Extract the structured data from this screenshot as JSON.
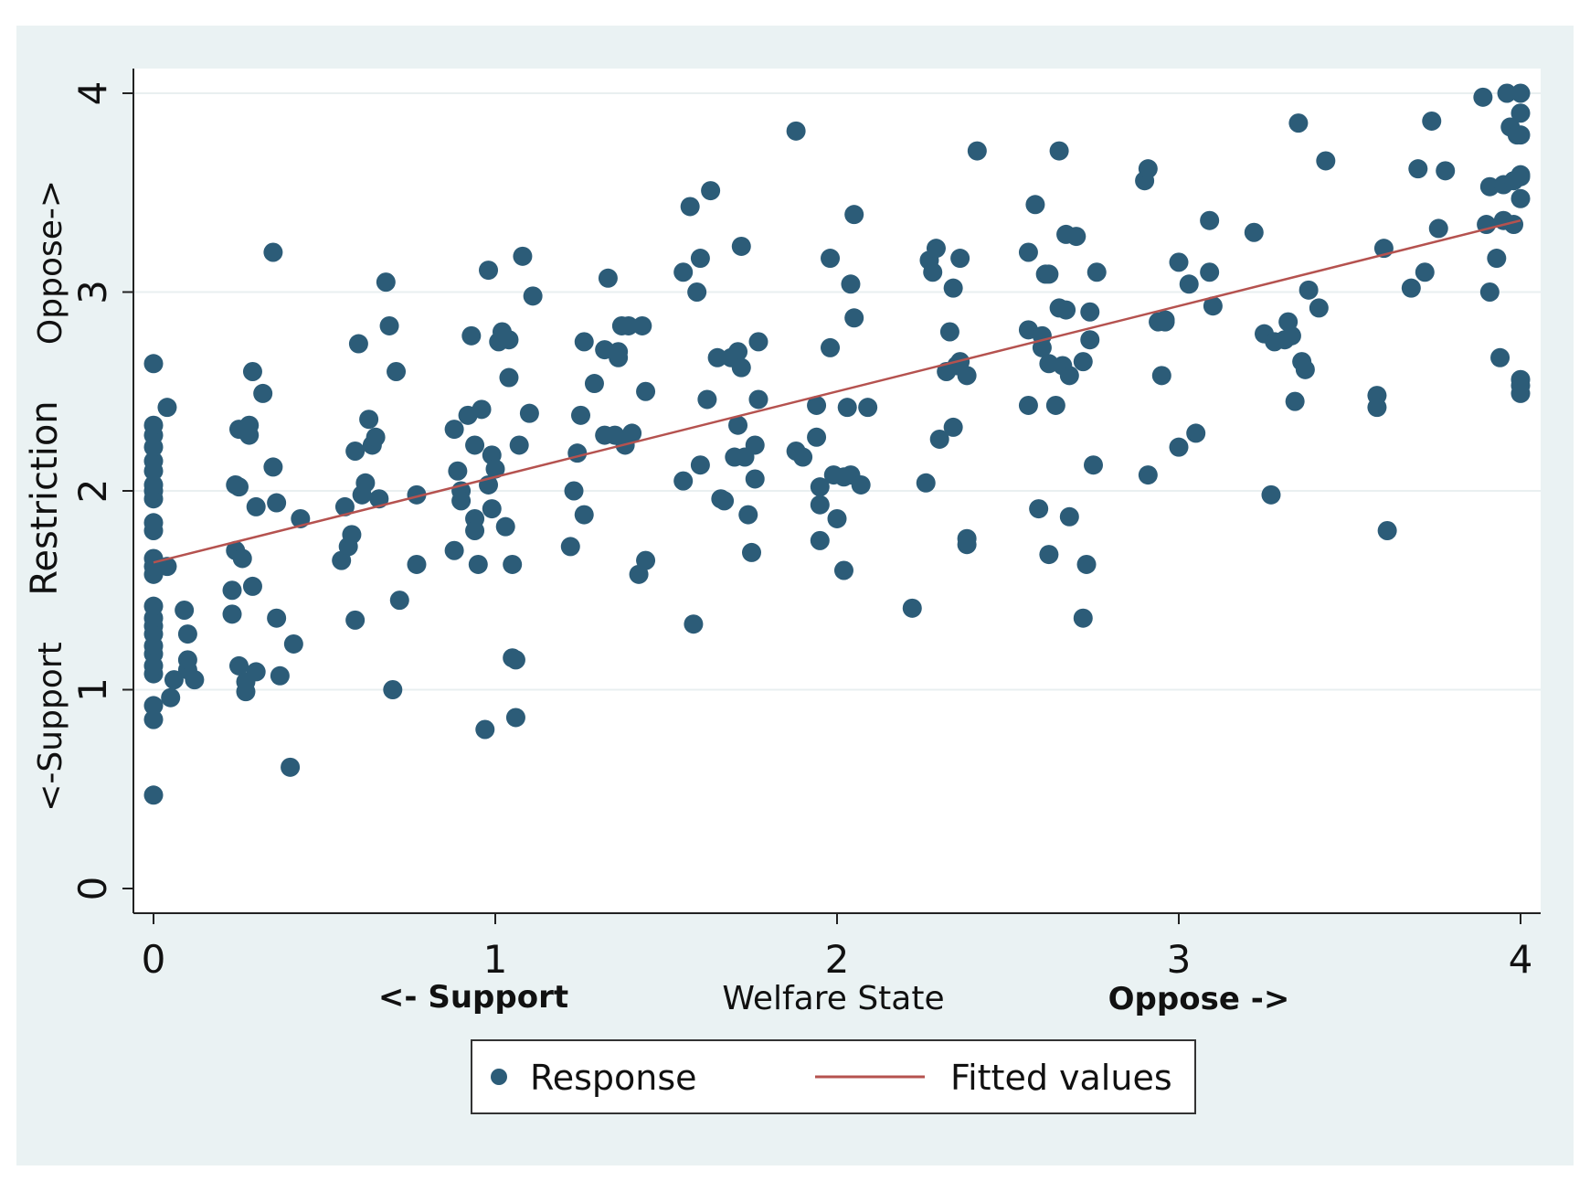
{
  "chart_data": {
    "type": "scatter",
    "title": "",
    "xlabel": "Welfare State",
    "x_sublabels": [
      "<- Support",
      "Oppose ->"
    ],
    "ylabel": "Restriction",
    "y_sublabels": [
      "<-Support",
      "Oppose->"
    ],
    "xlim": [
      0,
      4
    ],
    "ylim": [
      0,
      4
    ],
    "x_ticks": [
      "0",
      "1",
      "2",
      "3",
      "4"
    ],
    "y_ticks": [
      "0",
      "1",
      "2",
      "3",
      "4"
    ],
    "grid": "horizontal",
    "legend": {
      "position": "bottom",
      "entries": [
        "Response",
        "Fitted values"
      ]
    },
    "colors": {
      "points": "#2c5c78",
      "fit_line": "#b5524f",
      "frame_bg": "#eaf2f3",
      "plot_bg": "#ffffff"
    },
    "series": [
      {
        "name": "Response",
        "kind": "scatter",
        "points": [
          [
            0,
            0.47
          ],
          [
            0,
            0.85
          ],
          [
            0,
            0.92
          ],
          [
            0,
            1.08
          ],
          [
            0,
            1.12
          ],
          [
            0,
            1.18
          ],
          [
            0,
            1.22
          ],
          [
            0,
            1.28
          ],
          [
            0,
            1.32
          ],
          [
            0,
            1.36
          ],
          [
            0,
            1.42
          ],
          [
            0,
            1.58
          ],
          [
            0,
            1.62
          ],
          [
            0,
            1.66
          ],
          [
            0,
            1.8
          ],
          [
            0,
            1.84
          ],
          [
            0,
            1.96
          ],
          [
            0,
            2.0
          ],
          [
            0,
            2.03
          ],
          [
            0,
            2.1
          ],
          [
            0,
            2.15
          ],
          [
            0,
            2.22
          ],
          [
            0,
            2.28
          ],
          [
            0,
            2.33
          ],
          [
            0,
            2.64
          ],
          [
            0.04,
            1.62
          ],
          [
            0.04,
            2.42
          ],
          [
            0.05,
            0.96
          ],
          [
            0.06,
            1.05
          ],
          [
            0.09,
            1.4
          ],
          [
            0.1,
            1.28
          ],
          [
            0.1,
            1.1
          ],
          [
            0.1,
            1.15
          ],
          [
            0.12,
            1.05
          ],
          [
            0.23,
            1.5
          ],
          [
            0.23,
            1.38
          ],
          [
            0.24,
            1.7
          ],
          [
            0.24,
            2.03
          ],
          [
            0.25,
            2.02
          ],
          [
            0.25,
            2.31
          ],
          [
            0.25,
            1.12
          ],
          [
            0.26,
            1.66
          ],
          [
            0.27,
            1.04
          ],
          [
            0.27,
            0.99
          ],
          [
            0.28,
            2.28
          ],
          [
            0.28,
            2.33
          ],
          [
            0.29,
            1.52
          ],
          [
            0.29,
            2.6
          ],
          [
            0.3,
            1.92
          ],
          [
            0.3,
            1.09
          ],
          [
            0.32,
            2.49
          ],
          [
            0.35,
            3.2
          ],
          [
            0.35,
            2.12
          ],
          [
            0.36,
            1.94
          ],
          [
            0.36,
            1.36
          ],
          [
            0.37,
            1.07
          ],
          [
            0.4,
            0.61
          ],
          [
            0.41,
            1.23
          ],
          [
            0.43,
            1.86
          ],
          [
            0.55,
            1.65
          ],
          [
            0.56,
            1.92
          ],
          [
            0.57,
            1.72
          ],
          [
            0.58,
            1.78
          ],
          [
            0.59,
            1.35
          ],
          [
            0.59,
            2.2
          ],
          [
            0.6,
            2.74
          ],
          [
            0.61,
            1.98
          ],
          [
            0.62,
            2.04
          ],
          [
            0.63,
            2.36
          ],
          [
            0.64,
            2.23
          ],
          [
            0.65,
            2.27
          ],
          [
            0.66,
            1.96
          ],
          [
            0.68,
            3.05
          ],
          [
            0.69,
            2.83
          ],
          [
            0.7,
            1.0
          ],
          [
            0.71,
            2.6
          ],
          [
            0.72,
            1.45
          ],
          [
            0.77,
            1.98
          ],
          [
            0.77,
            1.63
          ],
          [
            0.88,
            2.31
          ],
          [
            0.88,
            1.7
          ],
          [
            0.89,
            2.1
          ],
          [
            0.9,
            2.0
          ],
          [
            0.9,
            1.95
          ],
          [
            0.92,
            2.38
          ],
          [
            0.93,
            2.78
          ],
          [
            0.94,
            2.23
          ],
          [
            0.94,
            1.86
          ],
          [
            0.94,
            1.8
          ],
          [
            0.95,
            1.63
          ],
          [
            0.96,
            2.41
          ],
          [
            0.97,
            0.8
          ],
          [
            0.98,
            3.11
          ],
          [
            0.98,
            2.03
          ],
          [
            0.99,
            1.91
          ],
          [
            0.99,
            2.18
          ],
          [
            1.0,
            2.11
          ],
          [
            1.01,
            2.75
          ],
          [
            1.02,
            2.8
          ],
          [
            1.03,
            1.82
          ],
          [
            1.04,
            2.57
          ],
          [
            1.04,
            2.76
          ],
          [
            1.05,
            1.63
          ],
          [
            1.05,
            1.16
          ],
          [
            1.06,
            1.15
          ],
          [
            1.06,
            0.86
          ],
          [
            1.07,
            2.23
          ],
          [
            1.08,
            3.18
          ],
          [
            1.1,
            2.39
          ],
          [
            1.11,
            2.98
          ],
          [
            1.22,
            1.72
          ],
          [
            1.23,
            2.0
          ],
          [
            1.24,
            2.19
          ],
          [
            1.25,
            2.38
          ],
          [
            1.26,
            1.88
          ],
          [
            1.26,
            2.75
          ],
          [
            1.29,
            2.54
          ],
          [
            1.32,
            2.28
          ],
          [
            1.32,
            2.71
          ],
          [
            1.33,
            3.07
          ],
          [
            1.35,
            2.28
          ],
          [
            1.36,
            2.7
          ],
          [
            1.36,
            2.67
          ],
          [
            1.37,
            2.83
          ],
          [
            1.38,
            2.23
          ],
          [
            1.38,
            2.25
          ],
          [
            1.39,
            2.83
          ],
          [
            1.4,
            2.29
          ],
          [
            1.42,
            1.58
          ],
          [
            1.43,
            2.83
          ],
          [
            1.44,
            1.65
          ],
          [
            1.44,
            2.5
          ],
          [
            1.55,
            3.1
          ],
          [
            1.55,
            2.05
          ],
          [
            1.57,
            3.43
          ],
          [
            1.58,
            1.33
          ],
          [
            1.59,
            3.0
          ],
          [
            1.6,
            2.13
          ],
          [
            1.6,
            3.17
          ],
          [
            1.62,
            2.46
          ],
          [
            1.63,
            3.51
          ],
          [
            1.65,
            2.67
          ],
          [
            1.66,
            1.96
          ],
          [
            1.67,
            1.95
          ],
          [
            1.69,
            2.67
          ],
          [
            1.7,
            2.17
          ],
          [
            1.71,
            2.33
          ],
          [
            1.71,
            2.7
          ],
          [
            1.72,
            3.23
          ],
          [
            1.72,
            2.62
          ],
          [
            1.73,
            2.17
          ],
          [
            1.74,
            1.88
          ],
          [
            1.75,
            1.69
          ],
          [
            1.76,
            2.23
          ],
          [
            1.76,
            2.06
          ],
          [
            1.77,
            2.46
          ],
          [
            1.77,
            2.75
          ],
          [
            1.88,
            3.81
          ],
          [
            1.88,
            2.2
          ],
          [
            1.9,
            2.17
          ],
          [
            1.94,
            2.27
          ],
          [
            1.94,
            2.43
          ],
          [
            1.95,
            1.93
          ],
          [
            1.95,
            2.02
          ],
          [
            1.95,
            1.75
          ],
          [
            1.98,
            2.72
          ],
          [
            1.98,
            3.17
          ],
          [
            1.99,
            2.08
          ],
          [
            2.0,
            1.86
          ],
          [
            2.02,
            2.07
          ],
          [
            2.02,
            1.6
          ],
          [
            2.03,
            2.42
          ],
          [
            2.04,
            3.04
          ],
          [
            2.04,
            2.08
          ],
          [
            2.05,
            3.39
          ],
          [
            2.05,
            2.87
          ],
          [
            2.07,
            2.03
          ],
          [
            2.09,
            2.42
          ],
          [
            2.22,
            1.41
          ],
          [
            2.26,
            2.04
          ],
          [
            2.27,
            3.16
          ],
          [
            2.28,
            3.1
          ],
          [
            2.29,
            3.22
          ],
          [
            2.3,
            2.26
          ],
          [
            2.32,
            2.6
          ],
          [
            2.33,
            2.8
          ],
          [
            2.34,
            2.32
          ],
          [
            2.34,
            3.02
          ],
          [
            2.35,
            2.63
          ],
          [
            2.36,
            3.17
          ],
          [
            2.36,
            2.65
          ],
          [
            2.38,
            2.58
          ],
          [
            2.38,
            1.76
          ],
          [
            2.38,
            1.73
          ],
          [
            2.41,
            3.71
          ],
          [
            2.56,
            3.2
          ],
          [
            2.56,
            2.43
          ],
          [
            2.56,
            2.81
          ],
          [
            2.58,
            3.44
          ],
          [
            2.59,
            1.91
          ],
          [
            2.6,
            2.78
          ],
          [
            2.6,
            2.72
          ],
          [
            2.61,
            3.09
          ],
          [
            2.62,
            1.68
          ],
          [
            2.62,
            3.09
          ],
          [
            2.62,
            2.64
          ],
          [
            2.64,
            2.43
          ],
          [
            2.65,
            3.71
          ],
          [
            2.65,
            2.92
          ],
          [
            2.66,
            2.63
          ],
          [
            2.67,
            2.91
          ],
          [
            2.67,
            3.29
          ],
          [
            2.68,
            1.87
          ],
          [
            2.68,
            2.58
          ],
          [
            2.7,
            3.28
          ],
          [
            2.72,
            1.36
          ],
          [
            2.72,
            2.65
          ],
          [
            2.73,
            1.63
          ],
          [
            2.74,
            2.76
          ],
          [
            2.74,
            2.9
          ],
          [
            2.75,
            2.13
          ],
          [
            2.76,
            3.1
          ],
          [
            2.9,
            3.56
          ],
          [
            2.91,
            2.08
          ],
          [
            2.91,
            3.62
          ],
          [
            2.94,
            2.85
          ],
          [
            2.95,
            2.58
          ],
          [
            2.96,
            2.86
          ],
          [
            2.96,
            2.85
          ],
          [
            3.0,
            3.15
          ],
          [
            3.0,
            2.22
          ],
          [
            3.03,
            3.04
          ],
          [
            3.05,
            2.29
          ],
          [
            3.09,
            3.1
          ],
          [
            3.09,
            3.36
          ],
          [
            3.1,
            2.93
          ],
          [
            3.22,
            3.3
          ],
          [
            3.25,
            2.79
          ],
          [
            3.27,
            1.98
          ],
          [
            3.28,
            2.75
          ],
          [
            3.31,
            2.76
          ],
          [
            3.32,
            2.85
          ],
          [
            3.33,
            2.78
          ],
          [
            3.34,
            2.45
          ],
          [
            3.35,
            3.85
          ],
          [
            3.36,
            2.65
          ],
          [
            3.37,
            2.61
          ],
          [
            3.38,
            3.01
          ],
          [
            3.41,
            2.92
          ],
          [
            3.43,
            3.66
          ],
          [
            3.58,
            2.48
          ],
          [
            3.58,
            2.42
          ],
          [
            3.6,
            3.22
          ],
          [
            3.61,
            1.8
          ],
          [
            3.68,
            3.02
          ],
          [
            3.7,
            3.62
          ],
          [
            3.72,
            3.1
          ],
          [
            3.74,
            3.86
          ],
          [
            3.76,
            3.32
          ],
          [
            3.78,
            3.61
          ],
          [
            3.89,
            3.98
          ],
          [
            3.9,
            3.34
          ],
          [
            3.91,
            3.53
          ],
          [
            3.91,
            3.0
          ],
          [
            3.93,
            3.17
          ],
          [
            3.94,
            2.67
          ],
          [
            3.95,
            3.54
          ],
          [
            3.95,
            3.36
          ],
          [
            3.96,
            4.0
          ],
          [
            3.97,
            3.83
          ],
          [
            3.98,
            3.56
          ],
          [
            3.98,
            3.34
          ],
          [
            3.99,
            3.79
          ],
          [
            4.0,
            4.0
          ],
          [
            4.0,
            3.9
          ],
          [
            4.0,
            3.79
          ],
          [
            4.0,
            3.59
          ],
          [
            4.0,
            3.47
          ],
          [
            4.0,
            2.56
          ],
          [
            4.0,
            2.53
          ],
          [
            4.0,
            2.49
          ],
          [
            4.0,
            3.58
          ]
        ]
      },
      {
        "name": "Fitted values",
        "kind": "line",
        "x": [
          0,
          4
        ],
        "y": [
          1.64,
          3.36
        ]
      }
    ]
  }
}
